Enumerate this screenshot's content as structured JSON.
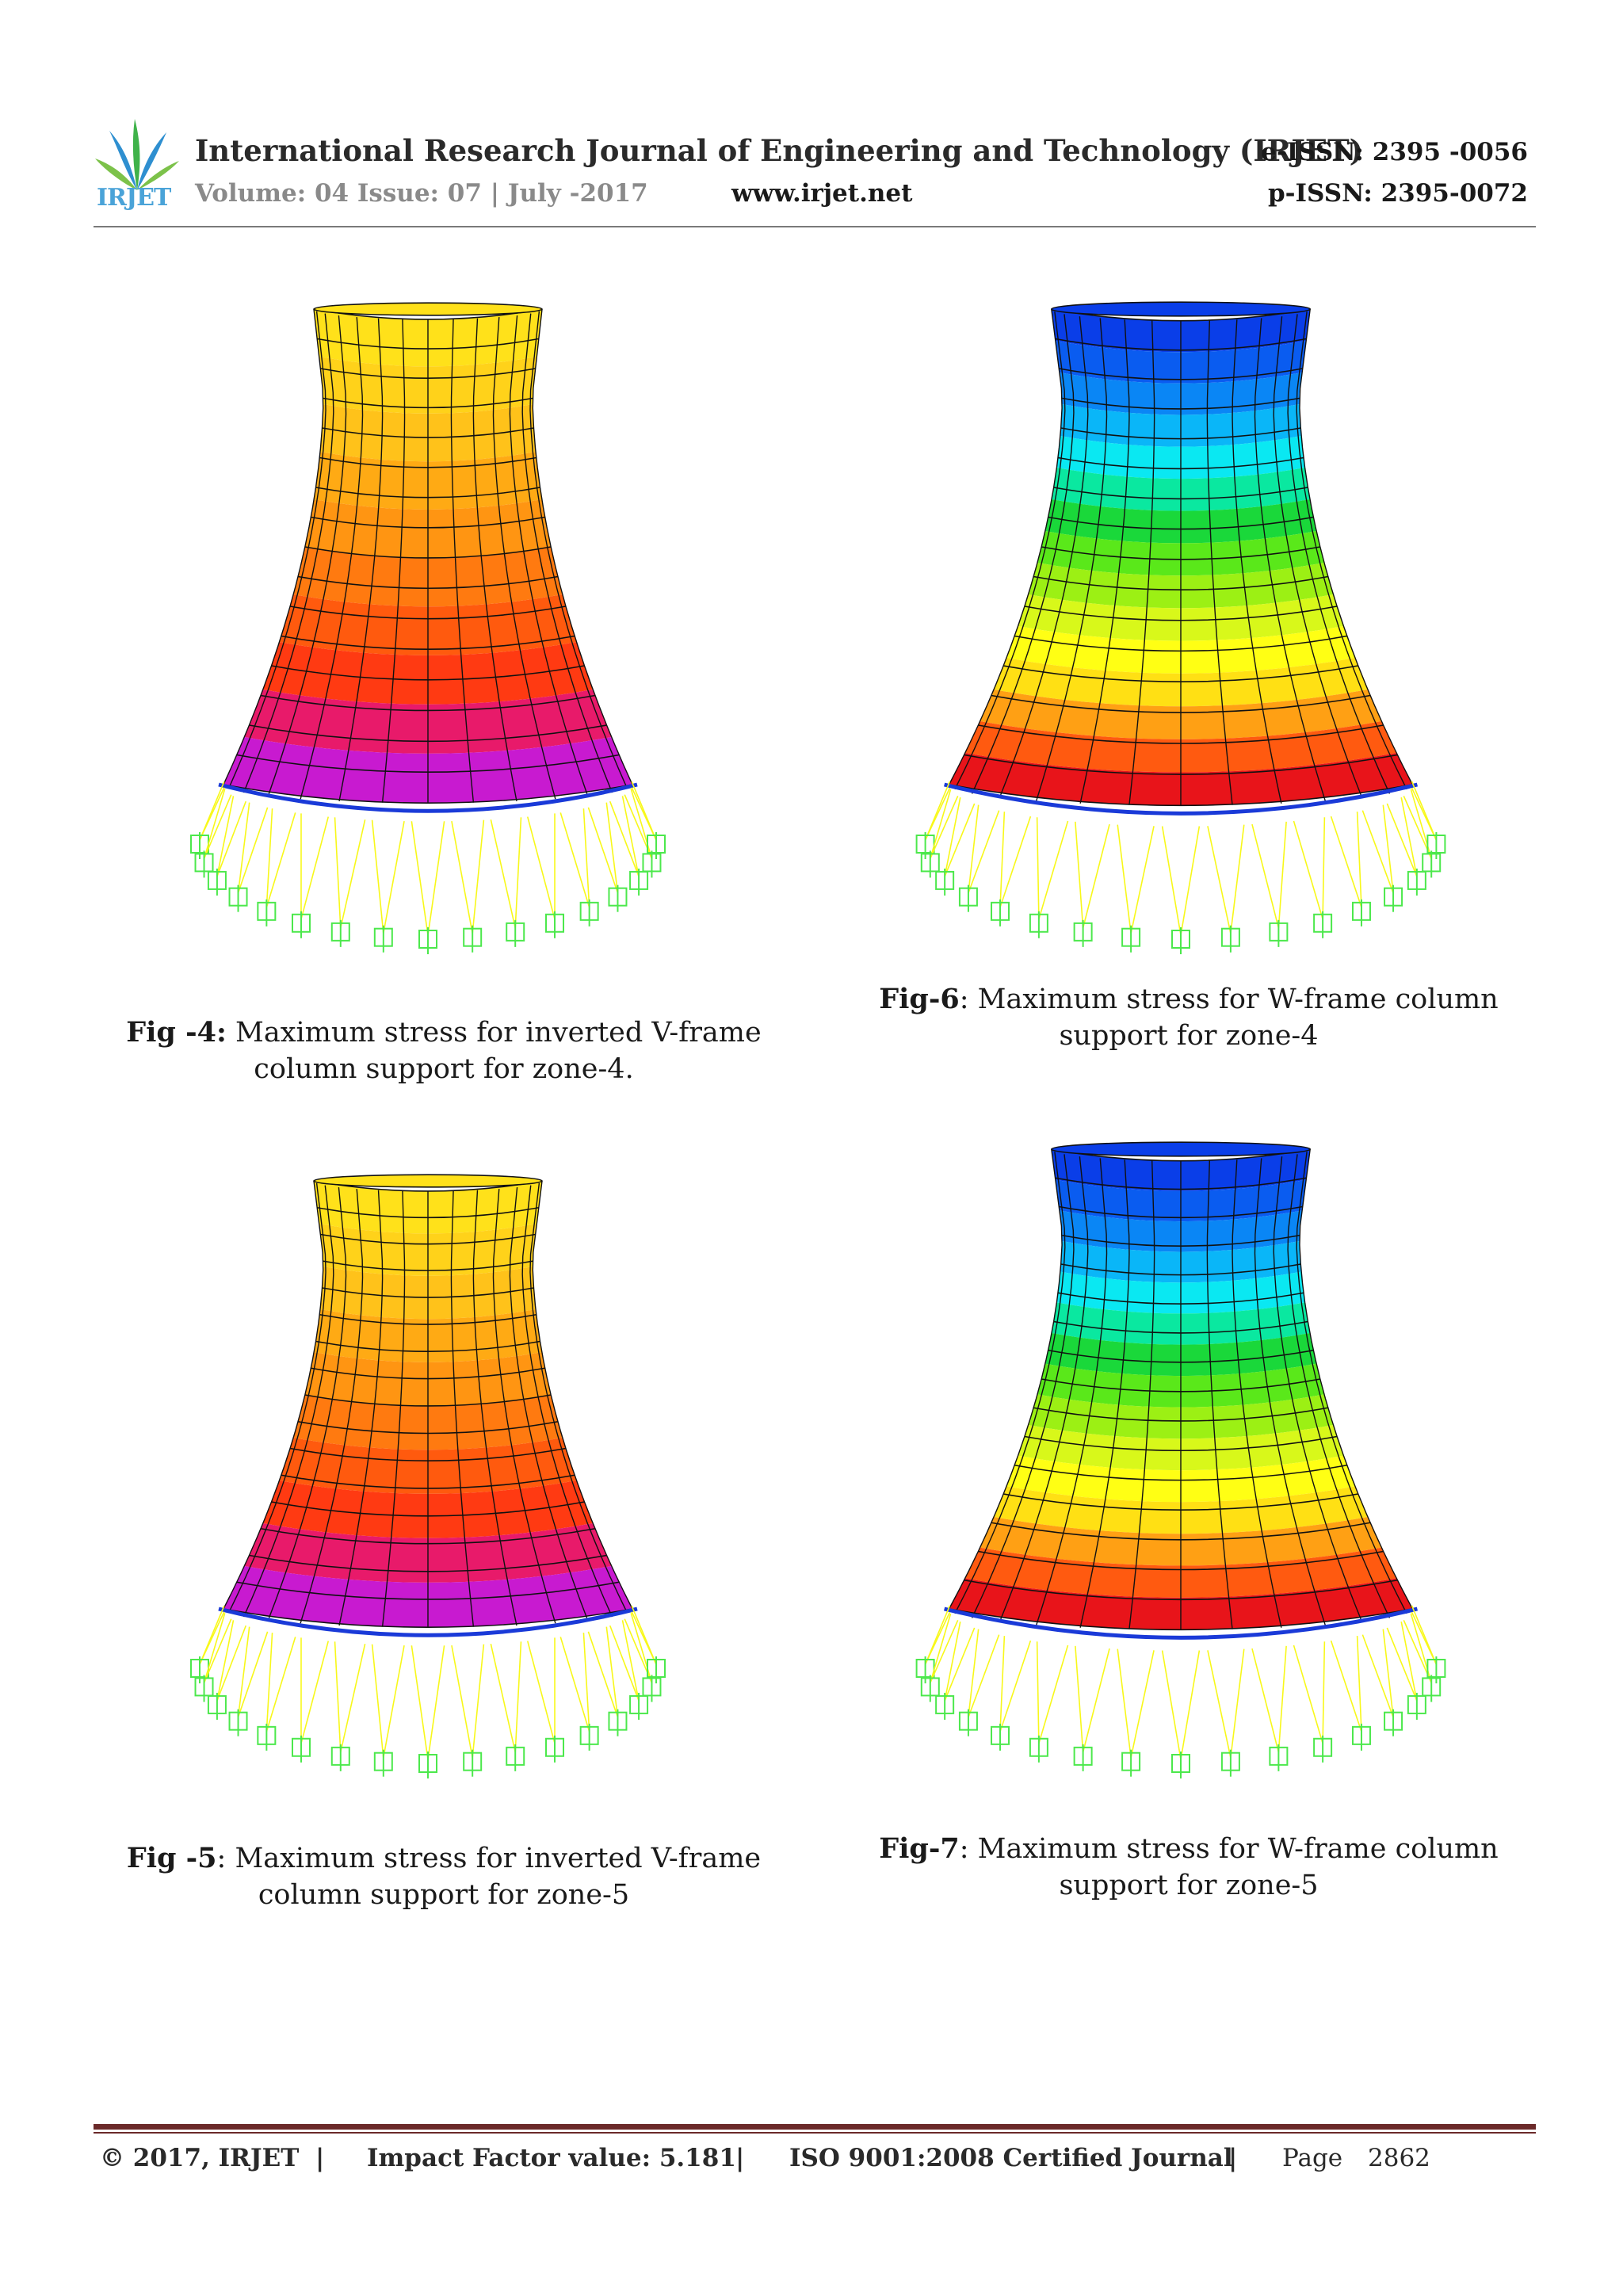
{
  "header": {
    "logo_text": "IRJET",
    "journal_title": "International Research Journal of Engineering and Technology (IRJET)",
    "e_issn": "e-ISSN: 2395 -0056",
    "p_issn": "p-ISSN: 2395-0072",
    "volume": "Volume: 04 Issue: 07 | July -2017",
    "website": "www.irjet.net"
  },
  "figures": [
    {
      "label": "Fig -4:",
      "caption": " Maximum stress for inverted V-frame column support for zone-4.",
      "scheme": "warm"
    },
    {
      "label": "Fig-6",
      "caption": ": Maximum stress for W-frame column support for zone-4",
      "scheme": "rainbow"
    },
    {
      "label": "Fig -5",
      "caption": ": Maximum stress for inverted V-frame column support for zone-5",
      "scheme": "warm"
    },
    {
      "label": "Fig-7",
      "caption": ": Maximum stress for W-frame column support for zone-5",
      "scheme": "rainbow"
    }
  ],
  "colors": {
    "warm": [
      "#ffe11a",
      "#ffd21a",
      "#ffc21a",
      "#ffaa14",
      "#ff9512",
      "#ff7a10",
      "#ff5a0e",
      "#ff3a12",
      "#e81a6a",
      "#c81ad0"
    ],
    "rainbow": [
      "#0a3ee8",
      "#0a5cf0",
      "#0a86f5",
      "#0ab6f8",
      "#0ae8f2",
      "#0ae8a0",
      "#1ad83a",
      "#5ae81a",
      "#9cf014",
      "#d8f81a",
      "#ffff14",
      "#ffe014",
      "#ffa014",
      "#ff5a10",
      "#e8141a"
    ],
    "support": "#4ce84c",
    "strut": "#f8f81a",
    "footer_rule": "#6b2a2a"
  },
  "footer": {
    "copyright": "© 2017, IRJET",
    "sep1": "|",
    "impact": "Impact Factor value: 5.181",
    "sep2": "|",
    "iso": "ISO 9001:2008 Certified Journal",
    "sep3": "|",
    "page_label": "Page",
    "page_number": "2862"
  }
}
